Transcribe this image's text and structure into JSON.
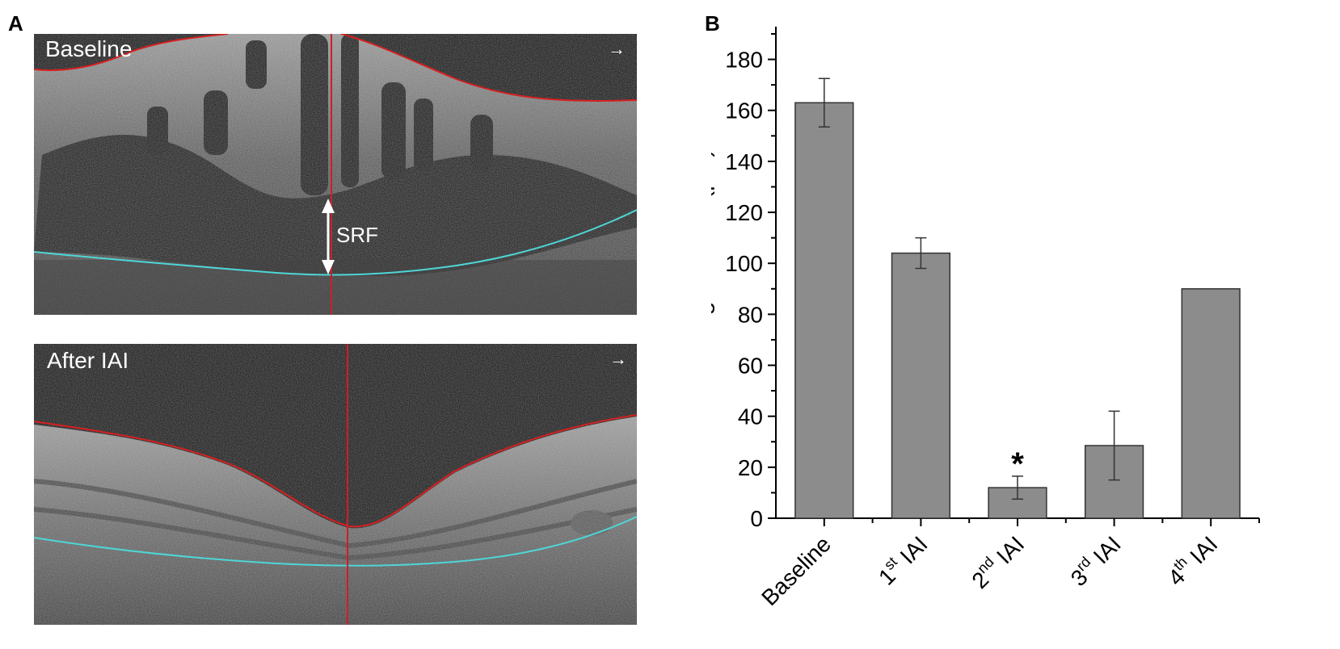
{
  "panels": {
    "a_letter": "A",
    "b_letter": "B"
  },
  "oct": {
    "top_label": "Baseline",
    "bottom_label": "After IAI",
    "annotation": "SRF",
    "arrow_glyph": "→",
    "colors": {
      "boundary": "#d62020",
      "rpe_line": "#4fd6d6",
      "marker_line": "#cc1f2a",
      "scan_bg": "#111111"
    }
  },
  "chart_data": {
    "type": "bar",
    "categories": [
      "Baseline",
      "1st IAI",
      "2nd IAI",
      "3rd IAI",
      "4th IAI"
    ],
    "category_labels": [
      {
        "base": "Baseline",
        "sup": "",
        "tail": ""
      },
      {
        "base": "1",
        "sup": "st",
        "tail": " IAI"
      },
      {
        "base": "2",
        "sup": "nd",
        "tail": " IAI"
      },
      {
        "base": "3",
        "sup": "rd",
        "tail": " IAI"
      },
      {
        "base": "4",
        "sup": "th",
        "tail": " IAI"
      }
    ],
    "values": [
      163,
      104,
      12,
      28.5,
      90
    ],
    "errors": [
      9.5,
      6,
      4.5,
      13.5,
      0
    ],
    "significance": [
      "",
      "",
      "*",
      "",
      ""
    ],
    "ylabel": "The height of SRF(μm)",
    "xlabel": "",
    "ylim": [
      0,
      190
    ],
    "yticks": [
      0,
      20,
      40,
      60,
      80,
      100,
      120,
      140,
      160,
      180
    ],
    "bar_color": "#8c8c8c",
    "grid": false
  }
}
